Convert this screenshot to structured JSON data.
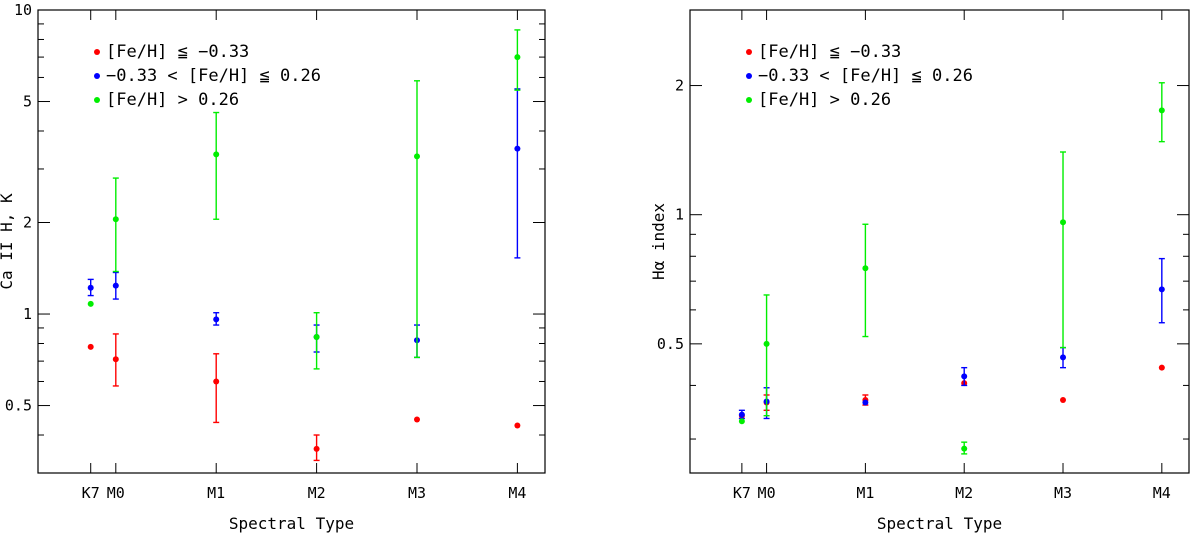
{
  "colors": {
    "red": "#ff0000",
    "blue": "#0000ff",
    "green": "#00ee00"
  },
  "legend": [
    {
      "series": "low",
      "label": "[Fe/H] ≦ −0.33",
      "color": "#ff0000"
    },
    {
      "series": "mid",
      "label": "−0.33 < [Fe/H] ≦ 0.26",
      "color": "#0000ff"
    },
    {
      "series": "high",
      "label": "[Fe/H] > 0.26",
      "color": "#00ee00"
    }
  ],
  "chart_data": [
    {
      "type": "scatter",
      "ylabel": "Ca II H, K",
      "xlabel": "Spectral Type",
      "yscale": "log",
      "ylim": [
        0.3,
        10
      ],
      "xlim": [
        -1.55,
        8.55
      ],
      "categories": [
        {
          "label": "K7",
          "x": -0.5
        },
        {
          "label": "M0",
          "x": 0
        },
        {
          "label": "M1",
          "x": 2
        },
        {
          "label": "M2",
          "x": 4
        },
        {
          "label": "M3",
          "x": 6
        },
        {
          "label": "M4",
          "x": 8
        }
      ],
      "yticks": [
        {
          "v": 0.5,
          "label": "0.5"
        },
        {
          "v": 1,
          "label": "1"
        },
        {
          "v": 2,
          "label": "2"
        },
        {
          "v": 5,
          "label": "5"
        },
        {
          "v": 10,
          "label": "10"
        }
      ],
      "yminor": [
        0.3,
        0.4,
        0.6,
        0.7,
        0.8,
        0.9,
        3,
        4,
        6,
        7,
        8,
        9
      ],
      "legend_position": "top-left",
      "series": [
        {
          "key": "low",
          "color": "#ff0000",
          "points": [
            {
              "x": -0.5,
              "y": 0.78
            },
            {
              "x": 0,
              "y": 0.71,
              "lo": 0.58,
              "hi": 0.86
            },
            {
              "x": 2,
              "y": 0.6,
              "lo": 0.44,
              "hi": 0.74
            },
            {
              "x": 4,
              "y": 0.36,
              "lo": 0.33,
              "hi": 0.4
            },
            {
              "x": 6,
              "y": 0.45
            },
            {
              "x": 8,
              "y": 0.43
            }
          ]
        },
        {
          "key": "mid",
          "color": "#0000ff",
          "points": [
            {
              "x": -0.5,
              "y": 1.22,
              "lo": 1.15,
              "hi": 1.3
            },
            {
              "x": 0,
              "y": 1.24,
              "lo": 1.12,
              "hi": 1.37
            },
            {
              "x": 2,
              "y": 0.96,
              "lo": 0.92,
              "hi": 1.01
            },
            {
              "x": 4,
              "y": 0.84,
              "lo": 0.75,
              "hi": 0.92
            },
            {
              "x": 6,
              "y": 0.82,
              "lo": 0.72,
              "hi": 0.92
            },
            {
              "x": 8,
              "y": 3.5,
              "lo": 1.53,
              "hi": 5.5
            }
          ]
        },
        {
          "key": "high",
          "color": "#00ee00",
          "points": [
            {
              "x": -0.5,
              "y": 1.08
            },
            {
              "x": 0,
              "y": 2.05,
              "lo": 1.38,
              "hi": 2.8
            },
            {
              "x": 2,
              "y": 3.35,
              "lo": 2.05,
              "hi": 4.6
            },
            {
              "x": 4,
              "y": 0.84,
              "lo": 0.66,
              "hi": 1.01
            },
            {
              "x": 6,
              "y": 3.3,
              "lo": 0.72,
              "hi": 5.85
            },
            {
              "x": 8,
              "y": 7.0,
              "lo": 5.45,
              "hi": 8.6
            }
          ]
        }
      ]
    },
    {
      "type": "scatter",
      "ylabel": "Hα index",
      "xlabel": "Spectral Type",
      "yscale": "log",
      "ylim": [
        0.25,
        3
      ],
      "xlim": [
        -1.55,
        8.55
      ],
      "categories": [
        {
          "label": "K7",
          "x": -0.5
        },
        {
          "label": "M0",
          "x": 0
        },
        {
          "label": "M1",
          "x": 2
        },
        {
          "label": "M2",
          "x": 4
        },
        {
          "label": "M3",
          "x": 6
        },
        {
          "label": "M4",
          "x": 8
        }
      ],
      "yticks": [
        {
          "v": 0.5,
          "label": "0.5"
        },
        {
          "v": 1,
          "label": "1"
        },
        {
          "v": 2,
          "label": "2"
        }
      ],
      "yminor": [
        0.3,
        0.4,
        0.6,
        0.7,
        0.8,
        0.9,
        3
      ],
      "legend_position": "top-left",
      "series": [
        {
          "key": "low",
          "color": "#ff0000",
          "points": [
            {
              "x": -0.5,
              "y": 0.34
            },
            {
              "x": 0,
              "y": 0.365,
              "lo": 0.35,
              "hi": 0.38
            },
            {
              "x": 2,
              "y": 0.37,
              "lo": 0.36,
              "hi": 0.38
            },
            {
              "x": 4,
              "y": 0.405
            },
            {
              "x": 6,
              "y": 0.37
            },
            {
              "x": 8,
              "y": 0.44
            }
          ]
        },
        {
          "key": "mid",
          "color": "#0000ff",
          "points": [
            {
              "x": -0.5,
              "y": 0.342,
              "lo": 0.335,
              "hi": 0.35
            },
            {
              "x": 0,
              "y": 0.367,
              "lo": 0.335,
              "hi": 0.395
            },
            {
              "x": 2,
              "y": 0.365
            },
            {
              "x": 4,
              "y": 0.42,
              "lo": 0.4,
              "hi": 0.44
            },
            {
              "x": 6,
              "y": 0.465,
              "lo": 0.44,
              "hi": 0.49
            },
            {
              "x": 8,
              "y": 0.67,
              "lo": 0.56,
              "hi": 0.79
            }
          ]
        },
        {
          "key": "high",
          "color": "#00ee00",
          "points": [
            {
              "x": -0.5,
              "y": 0.33
            },
            {
              "x": 0,
              "y": 0.5,
              "lo": 0.34,
              "hi": 0.65
            },
            {
              "x": 2,
              "y": 0.75,
              "lo": 0.52,
              "hi": 0.95
            },
            {
              "x": 4,
              "y": 0.285,
              "lo": 0.277,
              "hi": 0.295
            },
            {
              "x": 6,
              "y": 0.96,
              "lo": 0.49,
              "hi": 1.4
            },
            {
              "x": 8,
              "y": 1.75,
              "lo": 1.48,
              "hi": 2.03
            }
          ]
        }
      ]
    }
  ]
}
